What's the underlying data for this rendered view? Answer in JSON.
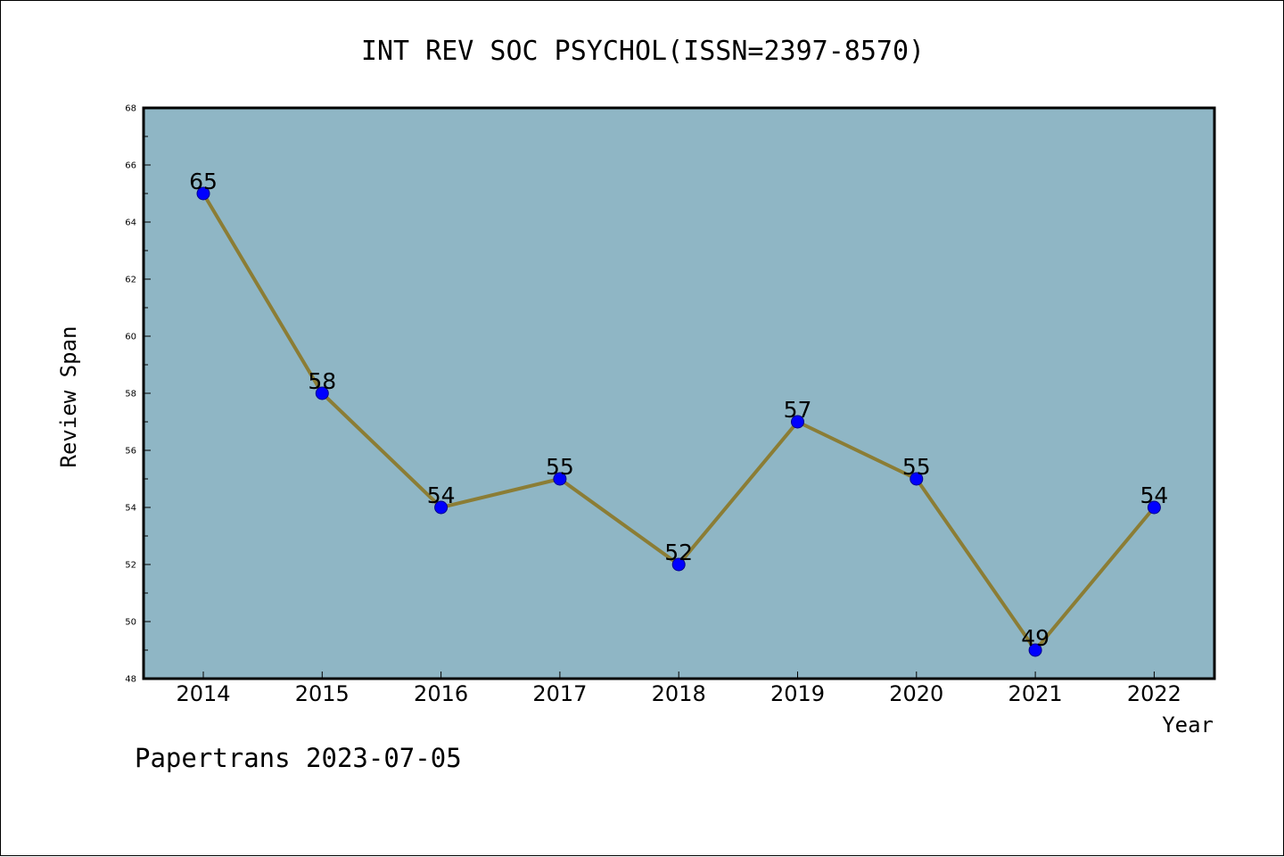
{
  "footer": "Papertrans 2023-07-05",
  "colors": {
    "background": "#ffffff",
    "plot_background": "#8fb6c5",
    "line": "#8b7d35",
    "marker_fill": "#0000ff",
    "marker_stroke": "#00008b",
    "axis": "#000000"
  },
  "chart_data": {
    "type": "line",
    "title": "INT REV SOC PSYCHOL(ISSN=2397-8570)",
    "xlabel": "Year",
    "ylabel": "Review Span",
    "categories": [
      "2014",
      "2015",
      "2016",
      "2017",
      "2018",
      "2019",
      "2020",
      "2021",
      "2022"
    ],
    "values": [
      65,
      58,
      54,
      55,
      52,
      57,
      55,
      49,
      54
    ],
    "data_labels": [
      "65",
      "58",
      "54",
      "55",
      "52",
      "57",
      "55",
      "49",
      "54"
    ],
    "ylim": [
      48,
      68
    ],
    "yticks": [
      "48",
      "50",
      "52",
      "54",
      "56",
      "58",
      "60",
      "62",
      "64",
      "66",
      "68"
    ],
    "grid": false,
    "legend": "none"
  }
}
